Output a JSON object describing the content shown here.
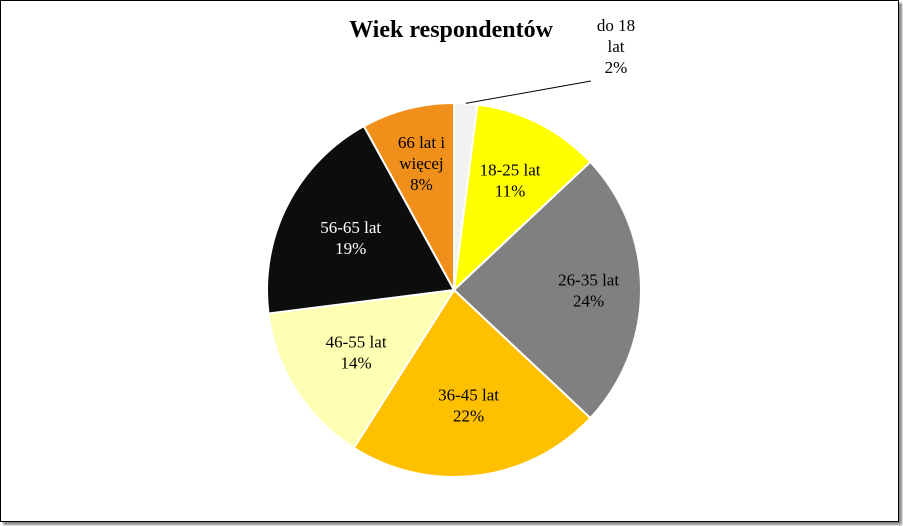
{
  "chart_data": {
    "type": "pie",
    "title": "Wiek respondentów",
    "slices": [
      {
        "label_lines": [
          "do 18",
          "lat"
        ],
        "value": 2,
        "value_label": "2%",
        "color": "#f2f2f2",
        "text_color": "#000000"
      },
      {
        "label_lines": [
          "18-25 lat"
        ],
        "value": 11,
        "value_label": "11%",
        "color": "#ffff00",
        "text_color": "#000000"
      },
      {
        "label_lines": [
          "26-35 lat"
        ],
        "value": 24,
        "value_label": "24%",
        "color": "#808080",
        "text_color": "#000000"
      },
      {
        "label_lines": [
          "36-45 lat"
        ],
        "value": 22,
        "value_label": "22%",
        "color": "#ffc000",
        "text_color": "#000000"
      },
      {
        "label_lines": [
          "46-55 lat"
        ],
        "value": 14,
        "value_label": "14%",
        "color": "#ffffb3",
        "text_color": "#000000"
      },
      {
        "label_lines": [
          "56-65 lat"
        ],
        "value": 19,
        "value_label": "19%",
        "color": "#0d0d0d",
        "text_color": "#ffffff"
      },
      {
        "label_lines": [
          "66 lat i",
          "więcej"
        ],
        "value": 8,
        "value_label": "8%",
        "color": "#f0901a",
        "text_color": "#000000"
      }
    ]
  }
}
